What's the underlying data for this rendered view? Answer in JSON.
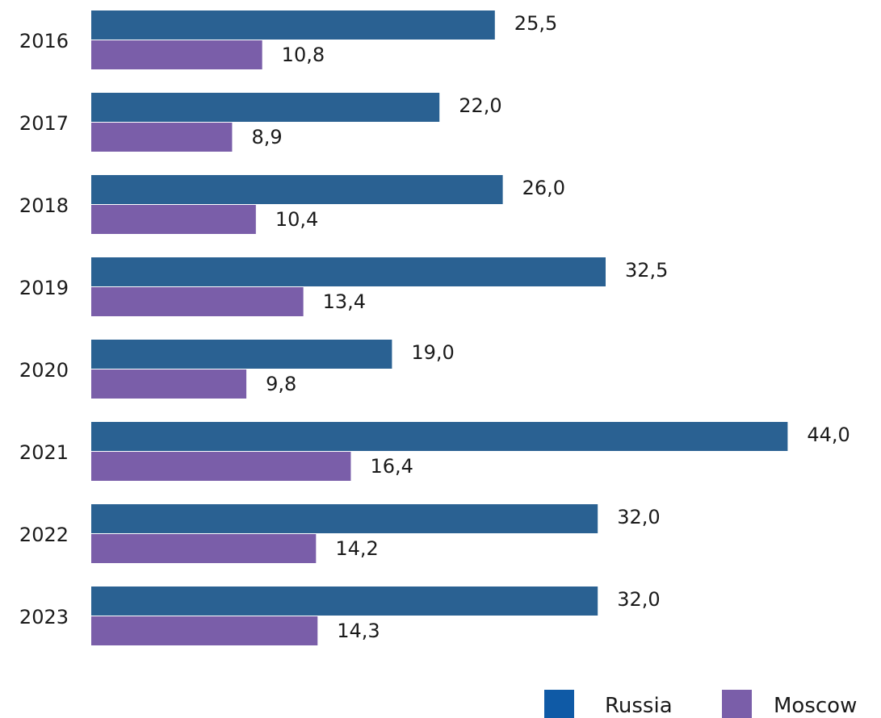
{
  "chart_data": {
    "type": "bar",
    "orientation": "horizontal",
    "categories": [
      "2016",
      "2017",
      "2018",
      "2019",
      "2020",
      "2021",
      "2022",
      "2023"
    ],
    "series": [
      {
        "name": "Russia",
        "color": "#2a6192",
        "values": [
          25.5,
          22.0,
          26.0,
          32.5,
          19.0,
          44.0,
          32.0,
          32.0
        ],
        "labels": [
          "25,5",
          "22,0",
          "26,0",
          "32,5",
          "19,0",
          "44,0",
          "32,0",
          "32,0"
        ]
      },
      {
        "name": "Moscow",
        "color": "#7a5ea9",
        "values": [
          10.8,
          8.9,
          10.4,
          13.4,
          9.8,
          16.4,
          14.2,
          14.3
        ],
        "labels": [
          "10,8",
          "8,9",
          "10,4",
          "13,4",
          "9,8",
          "16,4",
          "14,2",
          "14,3"
        ]
      }
    ],
    "legend": {
      "placement": "bottom-right",
      "items": [
        {
          "label": "Russia",
          "color": "#0f5aa6"
        },
        {
          "label": "Moscow",
          "color": "#7a5ea9"
        }
      ]
    },
    "xlim": [
      0,
      44
    ],
    "grid": false
  }
}
